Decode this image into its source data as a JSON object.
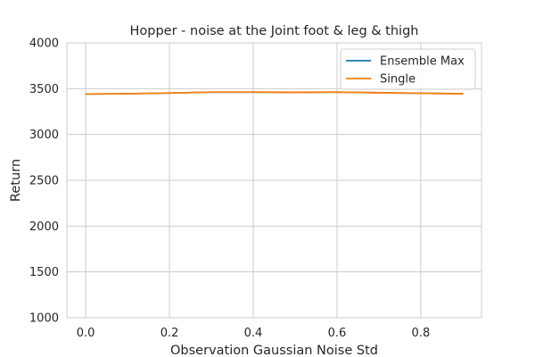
{
  "chart_data": {
    "type": "line",
    "title": "Hopper - noise at the Joint foot & leg & thigh",
    "xlabel": "Observation Gaussian Noise Std",
    "ylabel": "Return",
    "xlim": [
      -0.045,
      0.945
    ],
    "ylim": [
      1000,
      4000
    ],
    "x_ticks": [
      0.0,
      0.2,
      0.4,
      0.6,
      0.8
    ],
    "x_tick_labels": [
      "0.0",
      "0.2",
      "0.4",
      "0.6",
      "0.8"
    ],
    "y_ticks": [
      1000,
      1500,
      2000,
      2500,
      3000,
      3500,
      4000
    ],
    "y_tick_labels": [
      "1000",
      "1500",
      "2000",
      "2500",
      "3000",
      "3500",
      "4000"
    ],
    "grid": true,
    "legend_position": "top-right",
    "x": [
      0.0,
      0.1,
      0.2,
      0.3,
      0.4,
      0.5,
      0.6,
      0.7,
      0.8,
      0.9
    ],
    "series": [
      {
        "name": "Ensemble Max",
        "color": "#1f77b4",
        "values": [
          3441,
          3445,
          3452,
          3462,
          3462,
          3460,
          3462,
          3455,
          3450,
          3444
        ]
      },
      {
        "name": "Single",
        "color": "#ff7f0e",
        "values": [
          3441,
          3445,
          3452,
          3462,
          3462,
          3460,
          3462,
          3455,
          3450,
          3444
        ]
      }
    ]
  }
}
